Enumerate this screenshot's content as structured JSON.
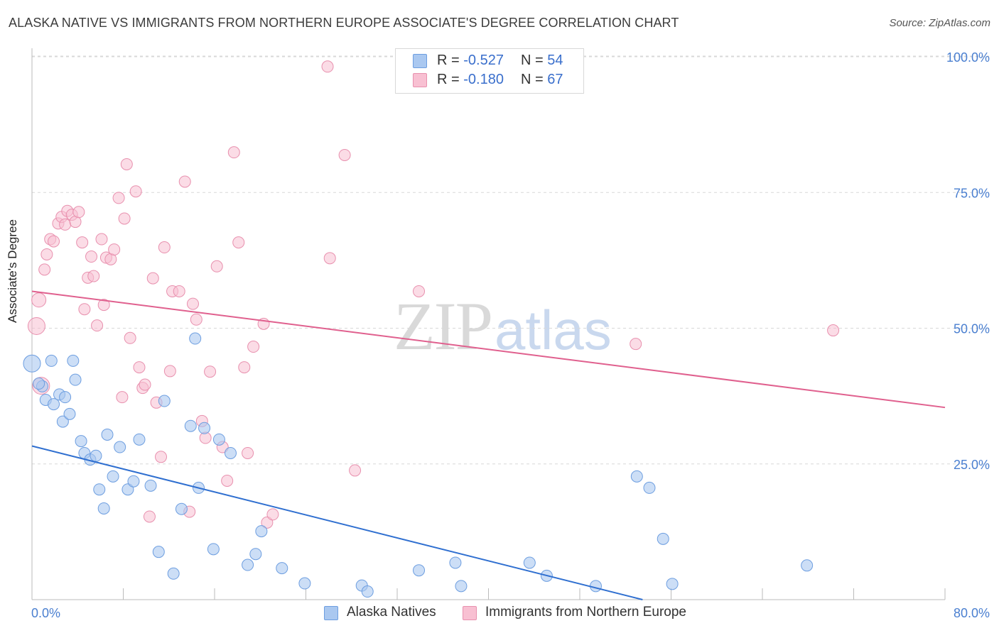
{
  "title": "ALASKA NATIVE VS IMMIGRANTS FROM NORTHERN EUROPE ASSOCIATE'S DEGREE CORRELATION CHART",
  "source": "Source: ZipAtlas.com",
  "watermark": {
    "part1": "ZIP",
    "part2": "atlas"
  },
  "legend_top": {
    "rows": [
      {
        "r_label": "R =",
        "r_value": "-0.527",
        "n_label": "N =",
        "n_value": "54",
        "color": "#aac8f0",
        "border": "#6d9ee0"
      },
      {
        "r_label": "R =",
        "r_value": "-0.180",
        "n_label": "N =",
        "n_value": "67",
        "color": "#f8c0d2",
        "border": "#e890ae"
      }
    ]
  },
  "colors": {
    "blue_fill": "#aac8f0",
    "blue_stroke": "#6d9ee0",
    "blue_line": "#2f6fd0",
    "pink_fill": "#f8c0d2",
    "pink_stroke": "#e890ae",
    "pink_line": "#e0608e",
    "axis_text": "#4a7fd0",
    "grid": "#d8d8d8"
  },
  "chart_data": {
    "type": "scatter",
    "title": "ALASKA NATIVE VS IMMIGRANTS FROM NORTHERN EUROPE ASSOCIATE'S DEGREE CORRELATION CHART",
    "xlabel": "",
    "ylabel": "Associate's Degree",
    "xlim": [
      0,
      80
    ],
    "ylim": [
      0,
      100
    ],
    "x_tick_labels": [
      "0.0%",
      "80.0%"
    ],
    "y_tick_labels": [
      "100.0%",
      "75.0%",
      "50.0%",
      "25.0%"
    ],
    "y_ticks": [
      100,
      75,
      50,
      25
    ],
    "grid": true,
    "legend": "bottom",
    "series": [
      {
        "name": "Alaska Natives",
        "trend": {
          "x": [
            0,
            53.5
          ],
          "y": [
            28.3,
            0
          ]
        },
        "points": [
          [
            0,
            43.5
          ],
          [
            0.9,
            39.3
          ],
          [
            1.2,
            36.8
          ],
          [
            1.7,
            44
          ],
          [
            1.9,
            36
          ],
          [
            2.4,
            37.8
          ],
          [
            2.7,
            32.8
          ],
          [
            2.9,
            37.3
          ],
          [
            3.3,
            34.2
          ],
          [
            3.6,
            44
          ],
          [
            3.8,
            40.5
          ],
          [
            4.3,
            29.2
          ],
          [
            4.6,
            27
          ],
          [
            5.1,
            25.8
          ],
          [
            5.6,
            26.5
          ],
          [
            5.9,
            20.3
          ],
          [
            6.3,
            16.8
          ],
          [
            6.6,
            30.4
          ],
          [
            7.1,
            22.7
          ],
          [
            7.7,
            28.1
          ],
          [
            8.4,
            20.3
          ],
          [
            8.9,
            21.8
          ],
          [
            9.4,
            29.5
          ],
          [
            10.4,
            21
          ],
          [
            11.1,
            8.8
          ],
          [
            11.6,
            36.6
          ],
          [
            12.4,
            4.8
          ],
          [
            13.1,
            16.7
          ],
          [
            13.9,
            32
          ],
          [
            14.3,
            48.1
          ],
          [
            14.6,
            20.6
          ],
          [
            15.1,
            31.6
          ],
          [
            15.9,
            9.3
          ],
          [
            16.4,
            29.5
          ],
          [
            17.4,
            27
          ],
          [
            18.9,
            6.4
          ],
          [
            19.6,
            8.4
          ],
          [
            20.1,
            12.6
          ],
          [
            21.9,
            5.8
          ],
          [
            23.9,
            3
          ],
          [
            28.9,
            2.6
          ],
          [
            29.4,
            1.5
          ],
          [
            33.9,
            5.4
          ],
          [
            37.1,
            6.8
          ],
          [
            37.6,
            2.5
          ],
          [
            43.6,
            6.8
          ],
          [
            45.1,
            4.4
          ],
          [
            49.4,
            2.5
          ],
          [
            53,
            22.7
          ],
          [
            54.1,
            20.6
          ],
          [
            55.3,
            11.2
          ],
          [
            56.1,
            2.9
          ],
          [
            67.9,
            6.3
          ],
          [
            0.6,
            39.8
          ]
        ]
      },
      {
        "name": "Immigrants from Northern Europe",
        "trend": {
          "x": [
            0,
            80
          ],
          "y": [
            56.8,
            35.4
          ]
        },
        "points": [
          [
            0.4,
            50.4
          ],
          [
            0.6,
            55.2
          ],
          [
            0.8,
            39.4
          ],
          [
            1.1,
            60.8
          ],
          [
            1.3,
            63.6
          ],
          [
            1.6,
            66.4
          ],
          [
            1.9,
            66
          ],
          [
            2.3,
            69.3
          ],
          [
            2.6,
            70.5
          ],
          [
            2.9,
            69.1
          ],
          [
            3.1,
            71.6
          ],
          [
            3.5,
            70.9
          ],
          [
            3.8,
            69.6
          ],
          [
            4.1,
            71.4
          ],
          [
            4.4,
            65.8
          ],
          [
            4.6,
            53.5
          ],
          [
            4.9,
            59.3
          ],
          [
            5.2,
            63.2
          ],
          [
            5.4,
            59.6
          ],
          [
            5.7,
            50.5
          ],
          [
            6.1,
            66.4
          ],
          [
            6.3,
            54.3
          ],
          [
            6.5,
            63
          ],
          [
            6.9,
            62.7
          ],
          [
            7.2,
            64.5
          ],
          [
            7.6,
            74
          ],
          [
            7.9,
            37.3
          ],
          [
            8.1,
            70.2
          ],
          [
            8.3,
            80.2
          ],
          [
            8.6,
            48.2
          ],
          [
            9.1,
            75.2
          ],
          [
            9.4,
            42.8
          ],
          [
            9.7,
            39
          ],
          [
            9.9,
            39.6
          ],
          [
            10.3,
            15.3
          ],
          [
            10.6,
            59.2
          ],
          [
            10.9,
            36.3
          ],
          [
            11.3,
            26.3
          ],
          [
            11.6,
            64.9
          ],
          [
            12.1,
            42.1
          ],
          [
            12.3,
            56.8
          ],
          [
            12.9,
            56.8
          ],
          [
            13.4,
            77
          ],
          [
            13.8,
            16.2
          ],
          [
            14.1,
            54.5
          ],
          [
            14.4,
            51.6
          ],
          [
            14.9,
            32.9
          ],
          [
            15.2,
            29.8
          ],
          [
            15.6,
            42
          ],
          [
            16.2,
            61.4
          ],
          [
            16.7,
            28.1
          ],
          [
            17.1,
            21.9
          ],
          [
            17.7,
            82.4
          ],
          [
            18.1,
            65.8
          ],
          [
            18.6,
            42.8
          ],
          [
            18.9,
            27
          ],
          [
            19.4,
            46.6
          ],
          [
            20.3,
            50.8
          ],
          [
            20.6,
            14.2
          ],
          [
            21.1,
            15.7
          ],
          [
            25.9,
            98.2
          ],
          [
            26.1,
            62.9
          ],
          [
            27.4,
            81.9
          ],
          [
            28.3,
            23.8
          ],
          [
            33.9,
            56.8
          ],
          [
            52.9,
            47.1
          ],
          [
            70.2,
            49.6
          ]
        ]
      }
    ]
  },
  "y_axis_label": "Associate's Degree",
  "x_axis": {
    "min_label": "0.0%",
    "max_label": "80.0%"
  },
  "bottom_legend": [
    {
      "label": "Alaska Natives"
    },
    {
      "label": "Immigrants from Northern Europe"
    }
  ]
}
